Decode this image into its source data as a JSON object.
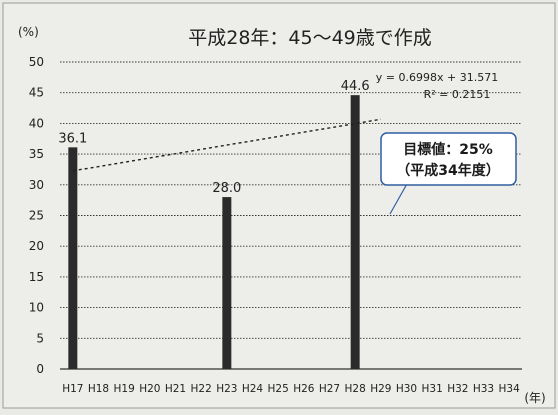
{
  "chart_data": {
    "type": "bar",
    "title": "平成28年：45～49歳で作成",
    "ylabel": "(%)",
    "xlabel": "(年)",
    "ylim": [
      0,
      50
    ],
    "yticks": [
      0,
      5,
      10,
      15,
      20,
      25,
      30,
      35,
      40,
      45,
      50
    ],
    "categories": [
      "H17",
      "H18",
      "H19",
      "H20",
      "H21",
      "H22",
      "H23",
      "H24",
      "H25",
      "H26",
      "H27",
      "H28",
      "H29",
      "H30",
      "H31",
      "H32",
      "H33",
      "H34"
    ],
    "series": [
      {
        "values": [
          36.1,
          null,
          null,
          null,
          null,
          null,
          28.0,
          null,
          null,
          null,
          null,
          44.6,
          null,
          null,
          null,
          null,
          null,
          null
        ],
        "data_labels": [
          "36.1",
          null,
          null,
          null,
          null,
          null,
          "28.0",
          null,
          null,
          null,
          null,
          "44.6",
          null,
          null,
          null,
          null,
          null,
          null
        ]
      }
    ],
    "trendline": {
      "slope": 0.6998,
      "intercept": 31.571,
      "equation": "y = 0.6998x + 31.571",
      "r2": "R² = 0.2151"
    },
    "callout": {
      "line1": "目標値：25%",
      "line2": "（平成34年度）",
      "target_value": 25,
      "target_category": "H34"
    },
    "grid": true,
    "legend": "none",
    "colors": {
      "bar": "#2b2b2b",
      "grid": "#333333",
      "trend": "#222222",
      "background": "#ededea",
      "callout_border": "#2f5fa0"
    }
  }
}
